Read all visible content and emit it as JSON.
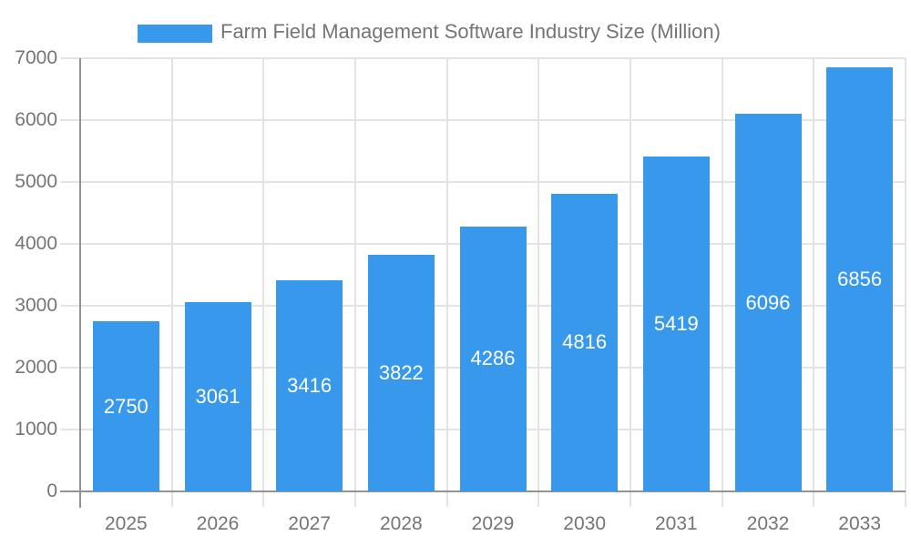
{
  "chart_data": {
    "type": "bar",
    "title": "Farm Field Management Software Industry Size (Million)",
    "categories": [
      "2025",
      "2026",
      "2027",
      "2028",
      "2029",
      "2030",
      "2031",
      "2032",
      "2033"
    ],
    "values": [
      2750,
      3061,
      3416,
      3822,
      4286,
      4816,
      5419,
      6096,
      6856
    ],
    "y_ticks": [
      0,
      1000,
      2000,
      3000,
      4000,
      5000,
      6000,
      7000
    ],
    "ylim": [
      0,
      7000
    ],
    "xlabel": "",
    "ylabel": "",
    "legend_position": "top",
    "grid": "both",
    "bar_label_position": "inside-center",
    "colors": {
      "bar": "#3898EC",
      "axis_line": "#949494",
      "gridline": "#e3e3e3",
      "tick": "#e3e3e3",
      "axis_text": "#757575",
      "legend_text": "#757575",
      "bar_label": "#ffffff",
      "background": "#ffffff"
    }
  }
}
